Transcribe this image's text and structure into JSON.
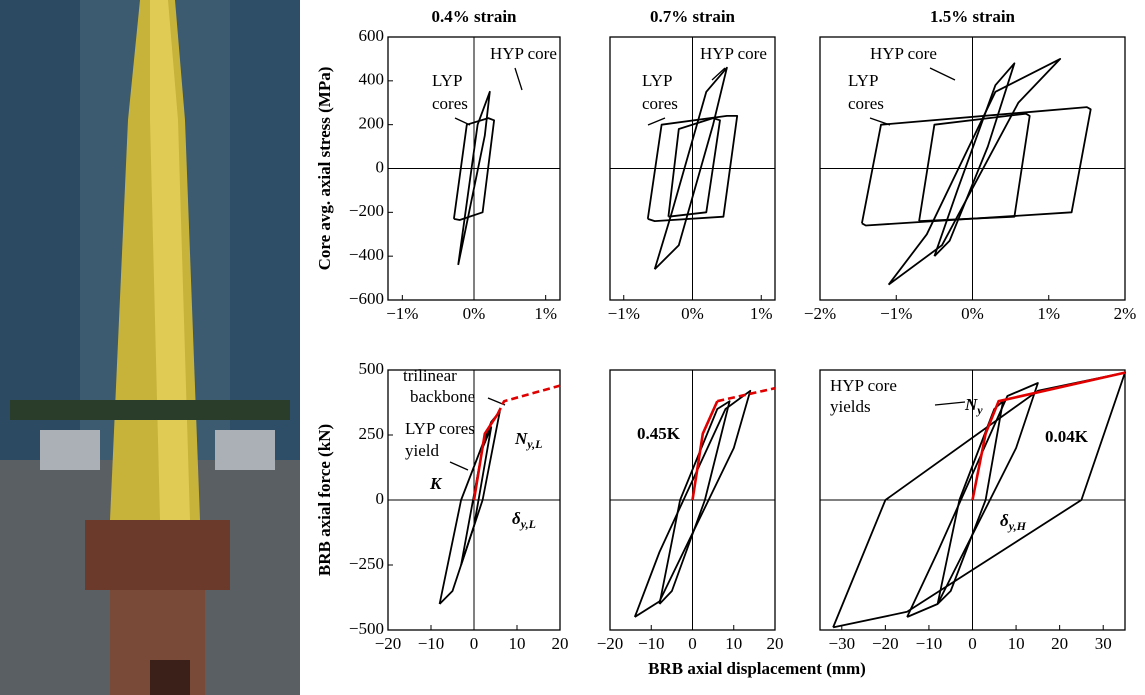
{
  "chart_data": [
    {
      "type": "line",
      "title": "0.4% strain",
      "ylabel": "Core avg. axial stress (MPa)",
      "xlim": [
        -1.2,
        1.2
      ],
      "ylim": [
        -600,
        600
      ],
      "xticks": [
        {
          "value": -1,
          "label": "−1%"
        },
        {
          "value": 0,
          "label": "0%"
        },
        {
          "value": 1,
          "label": "1%"
        }
      ],
      "yticks": [
        {
          "value": -600,
          "label": "−600"
        },
        {
          "value": -400,
          "label": "−400"
        },
        {
          "value": -200,
          "label": "−200"
        },
        0,
        200,
        400,
        600
      ],
      "annotations": [
        "HYP core",
        "LYP",
        "cores"
      ],
      "series": [
        {
          "color": "#000000",
          "x": [
            -0.28,
            -0.1,
            0.2,
            0.28,
            0.12,
            -0.2,
            -0.28
          ],
          "values": [
            -230,
            200,
            230,
            220,
            -200,
            -235,
            -230
          ]
        },
        {
          "color": "#000000",
          "x": [
            -0.22,
            0.05,
            0.22,
            0.15,
            -0.1,
            -0.22
          ],
          "values": [
            -440,
            200,
            350,
            150,
            -250,
            -440
          ]
        }
      ]
    },
    {
      "type": "line",
      "title": "0.7% strain",
      "xlim": [
        -1.2,
        1.2
      ],
      "ylim": [
        -600,
        600
      ],
      "xticks": [
        {
          "value": -1,
          "label": "−1%"
        },
        {
          "value": 0,
          "label": "0%"
        },
        {
          "value": 1,
          "label": "1%"
        }
      ],
      "annotations": [
        "HYP core",
        "LYP",
        "cores"
      ],
      "series": [
        {
          "color": "#000000",
          "x": [
            -0.65,
            -0.45,
            0.5,
            0.65,
            0.45,
            -0.55,
            -0.65
          ],
          "values": [
            -230,
            200,
            240,
            240,
            -220,
            -240,
            -230
          ]
        },
        {
          "color": "#000000",
          "x": [
            -0.35,
            -0.2,
            0.3,
            0.4,
            0.2,
            -0.35
          ],
          "values": [
            -220,
            180,
            230,
            220,
            -200,
            -220
          ]
        },
        {
          "color": "#000000",
          "x": [
            -0.55,
            -0.3,
            0.2,
            0.5,
            0.3,
            -0.2,
            -0.55
          ],
          "values": [
            -460,
            -200,
            350,
            460,
            200,
            -350,
            -460
          ]
        }
      ]
    },
    {
      "type": "line",
      "title": "1.5% strain",
      "xlim": [
        -2,
        2
      ],
      "ylim": [
        -600,
        600
      ],
      "xticks": [
        {
          "value": -2,
          "label": "−2%"
        },
        {
          "value": -1,
          "label": "−1%"
        },
        {
          "value": 0,
          "label": "0%"
        },
        {
          "value": 1,
          "label": "1%"
        },
        {
          "value": 2,
          "label": "2%"
        }
      ],
      "annotations": [
        "HYP core",
        "LYP",
        "cores"
      ],
      "series": [
        {
          "color": "#000000",
          "x": [
            -1.45,
            -1.2,
            1.5,
            1.55,
            1.3,
            -1.4,
            -1.45
          ],
          "values": [
            -250,
            200,
            280,
            270,
            -200,
            -260,
            -250
          ]
        },
        {
          "color": "#000000",
          "x": [
            -0.7,
            -0.5,
            0.7,
            0.75,
            0.55,
            -0.7
          ],
          "values": [
            -240,
            200,
            250,
            240,
            -220,
            -240
          ]
        },
        {
          "color": "#000000",
          "x": [
            -1.1,
            -0.6,
            0.3,
            1.15,
            0.6,
            -0.4,
            -1.1
          ],
          "values": [
            -530,
            -300,
            350,
            500,
            300,
            -350,
            -530
          ]
        },
        {
          "color": "#000000",
          "x": [
            -0.5,
            -0.2,
            0.3,
            0.55,
            0.2,
            -0.3,
            -0.5
          ],
          "values": [
            -400,
            -100,
            380,
            480,
            100,
            -330,
            -400
          ]
        }
      ]
    },
    {
      "type": "line",
      "ylabel": "BRB axial force (kN)",
      "xlim": [
        -20,
        20
      ],
      "ylim": [
        -500,
        500
      ],
      "xticks": [
        {
          "value": -20,
          "label": "−20"
        },
        {
          "value": -10,
          "label": "−10"
        },
        0,
        10,
        20
      ],
      "yticks": [
        {
          "value": -500,
          "label": "−500"
        },
        {
          "value": -250,
          "label": "−250"
        },
        0,
        250,
        500
      ],
      "annotations": [
        "trilinear",
        "backbone",
        "LYP cores",
        "yield",
        "K",
        {
          "text": "N",
          "sub": "y,L"
        },
        {
          "text": "δ",
          "sub": "y,L"
        }
      ],
      "series": [
        {
          "color": "#000000",
          "x": [
            -8,
            -3,
            4,
            6,
            2,
            -5,
            -8
          ],
          "values": [
            -400,
            0,
            300,
            340,
            0,
            -350,
            -400
          ]
        },
        {
          "color": "#000000",
          "x": [
            -3,
            2,
            4,
            0,
            -3
          ],
          "values": [
            -250,
            200,
            280,
            -100,
            -250
          ]
        },
        {
          "color": "#e00000",
          "x": [
            0,
            2.5,
            5.5
          ],
          "values": [
            0,
            255,
            330
          ]
        },
        {
          "color": "#e00000",
          "dashed": true,
          "x": [
            5.5,
            7,
            20
          ],
          "values": [
            330,
            380,
            440
          ]
        }
      ]
    },
    {
      "type": "line",
      "xlabel": "BRB axial displacement (mm)",
      "xlim": [
        -20,
        20
      ],
      "ylim": [
        -500,
        500
      ],
      "xticks": [
        {
          "value": -20,
          "label": "−20"
        },
        {
          "value": -10,
          "label": "−10"
        },
        0,
        10,
        20
      ],
      "annotations": [
        "0.45K"
      ],
      "series": [
        {
          "color": "#000000",
          "x": [
            -14,
            -8,
            8,
            14,
            10,
            -8,
            -14
          ],
          "values": [
            -450,
            -200,
            350,
            420,
            200,
            -390,
            -450
          ]
        },
        {
          "color": "#000000",
          "x": [
            -8,
            -3,
            6,
            9,
            3,
            -5,
            -8
          ],
          "values": [
            -400,
            0,
            350,
            380,
            0,
            -350,
            -400
          ]
        },
        {
          "color": "#e00000",
          "x": [
            0,
            2.5,
            6
          ],
          "values": [
            0,
            255,
            380
          ]
        },
        {
          "color": "#e00000",
          "dashed": true,
          "x": [
            6,
            20
          ],
          "values": [
            380,
            430
          ]
        }
      ]
    },
    {
      "type": "line",
      "xlim": [
        -35,
        35
      ],
      "ylim": [
        -500,
        500
      ],
      "xticks": [
        {
          "value": -30,
          "label": "−30"
        },
        {
          "value": -20,
          "label": "−20"
        },
        {
          "value": -10,
          "label": "−10"
        },
        0,
        10,
        20,
        30
      ],
      "annotations": [
        "HYP core",
        "yields",
        {
          "text": "N",
          "sub": "y"
        },
        "0.04K",
        {
          "text": "δ",
          "sub": "y,H"
        }
      ],
      "series": [
        {
          "color": "#000000",
          "x": [
            -32,
            -20,
            15,
            35,
            25,
            -15,
            -32
          ],
          "values": [
            -490,
            0,
            420,
            490,
            0,
            -430,
            -490
          ]
        },
        {
          "color": "#000000",
          "x": [
            -15,
            -8,
            8,
            15,
            10,
            -8,
            -15
          ],
          "values": [
            -450,
            -200,
            400,
            450,
            200,
            -400,
            -450
          ]
        },
        {
          "color": "#000000",
          "x": [
            -8,
            -3,
            5,
            7,
            3,
            -5,
            -8
          ],
          "values": [
            -400,
            0,
            350,
            380,
            0,
            -350,
            -400
          ]
        },
        {
          "color": "#e00000",
          "x": [
            0,
            3,
            6,
            35
          ],
          "values": [
            0,
            255,
            380,
            490
          ]
        }
      ]
    }
  ]
}
